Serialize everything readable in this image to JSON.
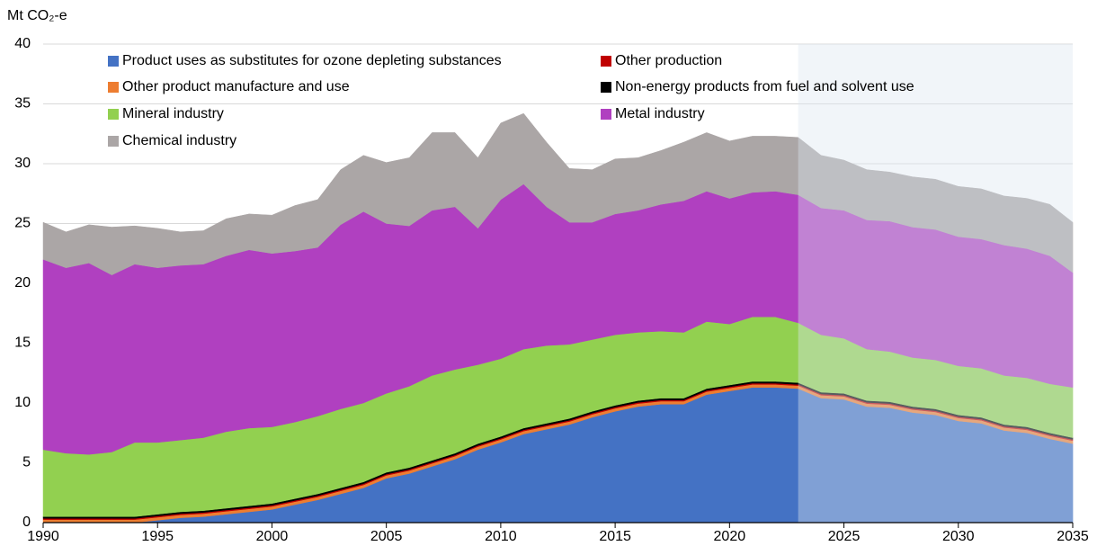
{
  "chart_data": {
    "type": "stacked_area",
    "y_axis_title": "Mt CO₂-e",
    "x": [
      1990,
      1991,
      1992,
      1993,
      1994,
      1995,
      1996,
      1997,
      1998,
      1999,
      2000,
      2001,
      2002,
      2003,
      2004,
      2005,
      2006,
      2007,
      2008,
      2009,
      2010,
      2011,
      2012,
      2013,
      2014,
      2015,
      2016,
      2017,
      2018,
      2019,
      2020,
      2021,
      2022,
      2023,
      2024,
      2025,
      2026,
      2027,
      2028,
      2029,
      2030,
      2031,
      2032,
      2033,
      2034,
      2035
    ],
    "xlim": [
      1990,
      2035
    ],
    "xticks": [
      1990,
      1995,
      2000,
      2005,
      2010,
      2015,
      2020,
      2025,
      2030,
      2035
    ],
    "ylim": [
      0,
      40
    ],
    "yticks": [
      0,
      5,
      10,
      15,
      20,
      25,
      30,
      35,
      40
    ],
    "grid": true,
    "highlight_xrange": [
      2023,
      2035
    ],
    "series": [
      {
        "name": "Product uses as substitutes for ozone depleting substances",
        "color": "#4472c4",
        "values": [
          0,
          0,
          0,
          0,
          0,
          0.2,
          0.4,
          0.5,
          0.7,
          0.9,
          1.1,
          1.5,
          1.9,
          2.4,
          2.9,
          3.7,
          4.1,
          4.7,
          5.3,
          6.1,
          6.7,
          7.4,
          7.8,
          8.2,
          8.8,
          9.3,
          9.7,
          9.9,
          9.9,
          10.7,
          11.0,
          11.3,
          11.3,
          11.2,
          10.4,
          10.3,
          9.7,
          9.6,
          9.2,
          9.0,
          8.5,
          8.3,
          7.7,
          7.5,
          7.0,
          6.6
        ]
      },
      {
        "name": "Other product manufacture and use",
        "color": "#ed7d31",
        "values": [
          0.25,
          0.25,
          0.25,
          0.25,
          0.25,
          0.25,
          0.25,
          0.25,
          0.25,
          0.25,
          0.25,
          0.25,
          0.25,
          0.25,
          0.25,
          0.25,
          0.25,
          0.25,
          0.25,
          0.25,
          0.25,
          0.25,
          0.25,
          0.25,
          0.25,
          0.25,
          0.25,
          0.25,
          0.25,
          0.25,
          0.25,
          0.25,
          0.25,
          0.25,
          0.25,
          0.25,
          0.25,
          0.25,
          0.25,
          0.25,
          0.25,
          0.25,
          0.25,
          0.25,
          0.25,
          0.25
        ]
      },
      {
        "name": "Other production",
        "color": "#c00000",
        "values": [
          0.1,
          0.1,
          0.1,
          0.1,
          0.1,
          0.1,
          0.1,
          0.1,
          0.1,
          0.1,
          0.1,
          0.1,
          0.1,
          0.1,
          0.1,
          0.1,
          0.1,
          0.1,
          0.1,
          0.1,
          0.1,
          0.1,
          0.1,
          0.1,
          0.1,
          0.1,
          0.1,
          0.1,
          0.1,
          0.1,
          0.1,
          0.1,
          0.1,
          0.1,
          0.1,
          0.1,
          0.1,
          0.1,
          0.1,
          0.1,
          0.1,
          0.1,
          0.1,
          0.1,
          0.1,
          0.1
        ]
      },
      {
        "name": "Non-energy products from fuel and solvent use",
        "color": "#000000",
        "values": [
          0.15,
          0.15,
          0.15,
          0.15,
          0.15,
          0.15,
          0.15,
          0.15,
          0.15,
          0.15,
          0.15,
          0.15,
          0.15,
          0.15,
          0.15,
          0.15,
          0.15,
          0.15,
          0.15,
          0.15,
          0.15,
          0.15,
          0.15,
          0.15,
          0.15,
          0.15,
          0.15,
          0.15,
          0.15,
          0.15,
          0.15,
          0.15,
          0.15,
          0.15,
          0.15,
          0.15,
          0.15,
          0.15,
          0.15,
          0.15,
          0.15,
          0.15,
          0.15,
          0.15,
          0.15,
          0.15
        ]
      },
      {
        "name": "Mineral industry",
        "color": "#92d050",
        "values": [
          5.6,
          5.3,
          5.2,
          5.4,
          6.2,
          6.0,
          6.0,
          6.1,
          6.4,
          6.5,
          6.4,
          6.4,
          6.5,
          6.6,
          6.6,
          6.6,
          6.8,
          7.1,
          7.0,
          6.6,
          6.5,
          6.6,
          6.5,
          6.2,
          6.0,
          5.9,
          5.7,
          5.6,
          5.5,
          5.6,
          5.1,
          5.4,
          5.4,
          5.0,
          4.8,
          4.6,
          4.3,
          4.2,
          4.1,
          4.1,
          4.1,
          4.1,
          4.1,
          4.1,
          4.1,
          4.2
        ]
      },
      {
        "name": "Metal industry",
        "color": "#b040c0",
        "values": [
          15.9,
          15.5,
          16.0,
          14.8,
          14.9,
          14.6,
          14.6,
          14.5,
          14.7,
          14.9,
          14.5,
          14.3,
          14.1,
          15.4,
          16.0,
          14.2,
          13.4,
          13.8,
          13.6,
          11.4,
          13.3,
          13.8,
          11.6,
          10.2,
          9.8,
          10.1,
          10.2,
          10.6,
          11.0,
          10.9,
          10.5,
          10.4,
          10.5,
          10.7,
          10.6,
          10.7,
          10.8,
          10.9,
          10.9,
          10.9,
          10.8,
          10.8,
          10.9,
          10.8,
          10.7,
          9.6
        ]
      },
      {
        "name": "Chemical industry",
        "color": "#aba6a6",
        "values": [
          3.1,
          3.0,
          3.2,
          4.0,
          3.2,
          3.3,
          2.8,
          2.8,
          3.1,
          3.0,
          3.2,
          3.8,
          4.0,
          4.6,
          4.7,
          5.1,
          5.7,
          6.5,
          6.2,
          5.9,
          6.4,
          5.9,
          5.4,
          4.5,
          4.4,
          4.6,
          4.4,
          4.5,
          4.9,
          4.9,
          4.8,
          4.7,
          4.6,
          4.8,
          4.4,
          4.2,
          4.2,
          4.1,
          4.2,
          4.2,
          4.2,
          4.2,
          4.1,
          4.2,
          4.3,
          4.2
        ]
      }
    ]
  }
}
